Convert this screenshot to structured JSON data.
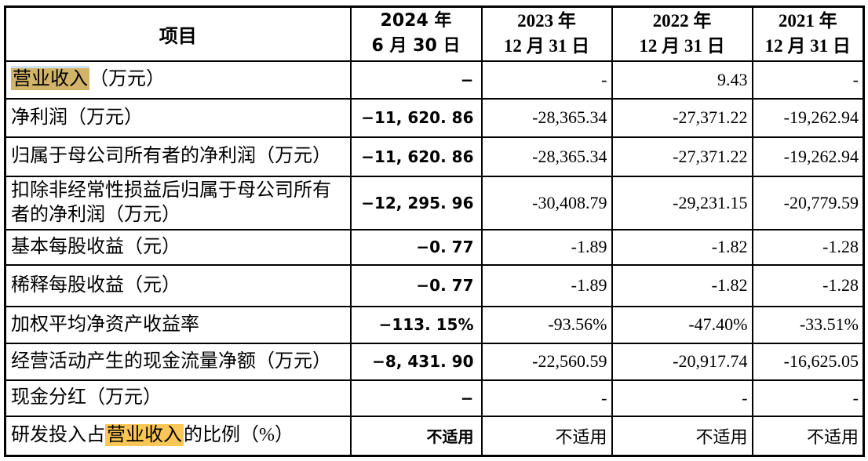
{
  "table": {
    "header": {
      "item_label": "项目",
      "periods": [
        {
          "line1": "2024 年",
          "line2": "6 月 30 日"
        },
        {
          "line1": "2023 年",
          "line2": "12 月 31 日"
        },
        {
          "line1": "2022 年",
          "line2": "12 月 31 日"
        },
        {
          "line1": "2021 年",
          "line2": "12 月 31 日"
        }
      ]
    },
    "highlight_colors": {
      "tan": "#d2b469",
      "yellow": "#fac655"
    },
    "rows": [
      {
        "label_parts": [
          {
            "text": "营业收入",
            "highlight": "tan"
          },
          {
            "text": "（万元）"
          }
        ],
        "values": [
          "−",
          "-",
          "9.43",
          "-"
        ]
      },
      {
        "label_parts": [
          {
            "text": "净利润（万元）"
          }
        ],
        "values": [
          "−11, 620. 86",
          "-28,365.34",
          "-27,371.22",
          "-19,262.94"
        ]
      },
      {
        "label_parts": [
          {
            "text": "归属于母公司所有者的净利润（万元）"
          }
        ],
        "values": [
          "−11, 620. 86",
          "-28,365.34",
          "-27,371.22",
          "-19,262.94"
        ]
      },
      {
        "label_parts": [
          {
            "text": "扣除非经常性损益后归属于母公司所有者的净利润（万元）"
          }
        ],
        "values": [
          "−12, 295. 96",
          "-30,408.79",
          "-29,231.15",
          "-20,779.59"
        ]
      },
      {
        "label_parts": [
          {
            "text": "基本每股收益（元）"
          }
        ],
        "values": [
          "−0. 77",
          "-1.89",
          "-1.82",
          "-1.28"
        ]
      },
      {
        "label_parts": [
          {
            "text": "稀释每股收益（元）"
          }
        ],
        "values": [
          "−0. 77",
          "-1.89",
          "-1.82",
          "-1.28"
        ]
      },
      {
        "label_parts": [
          {
            "text": "加权平均净资产收益率"
          }
        ],
        "values": [
          "−113. 15%",
          "-93.56%",
          "-47.40%",
          "-33.51%"
        ]
      },
      {
        "label_parts": [
          {
            "text": "经营活动产生的现金流量净额（万元）"
          }
        ],
        "values": [
          "−8, 431. 90",
          "-22,560.59",
          "-20,917.74",
          "-16,625.05"
        ]
      },
      {
        "label_parts": [
          {
            "text": "现金分红（万元）"
          }
        ],
        "values": [
          "−",
          "-",
          "-",
          "-"
        ]
      },
      {
        "label_parts": [
          {
            "text": "研发投入占"
          },
          {
            "text": "营业收入",
            "highlight": "yellow"
          },
          {
            "text": "的比例（%）"
          }
        ],
        "values": [
          "不适用",
          "不适用",
          "不适用",
          "不适用"
        ]
      }
    ]
  }
}
